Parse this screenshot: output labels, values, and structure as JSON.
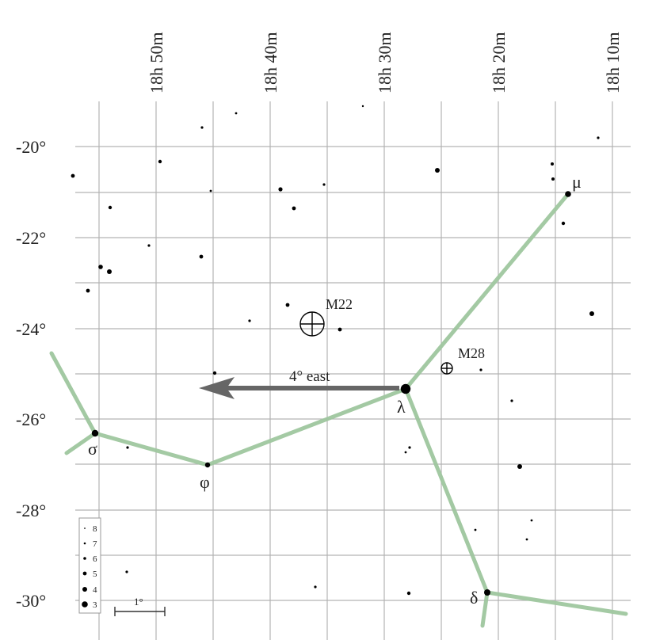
{
  "ra_labels": [
    "18h 50m",
    "18h 40m",
    "18h 30m",
    "18h 20m",
    "18h 10m"
  ],
  "dec_labels": [
    "-20°",
    "-22°",
    "-24°",
    "-26°",
    "-28°",
    "-30°"
  ],
  "stars_named": [
    {
      "label": "μ",
      "mag": 4
    },
    {
      "label": "λ",
      "mag": 3
    },
    {
      "label": "σ",
      "mag": 4
    },
    {
      "label": "φ",
      "mag": 5
    },
    {
      "label": "δ",
      "mag": 4
    }
  ],
  "deep_sky": [
    {
      "label": "M22",
      "size": "large"
    },
    {
      "label": "M28",
      "size": "small"
    }
  ],
  "arrow": {
    "label": "4° east"
  },
  "legend": {
    "magnitudes": [
      "8",
      "7",
      "6",
      "5",
      "4",
      "3"
    ]
  },
  "scale_bar": {
    "label": "1°"
  },
  "colors": {
    "grid": "#b3b3b3",
    "constellation_line": "#9fc79f",
    "star": "#000000",
    "arrow": "#666666",
    "background": "#ffffff"
  }
}
